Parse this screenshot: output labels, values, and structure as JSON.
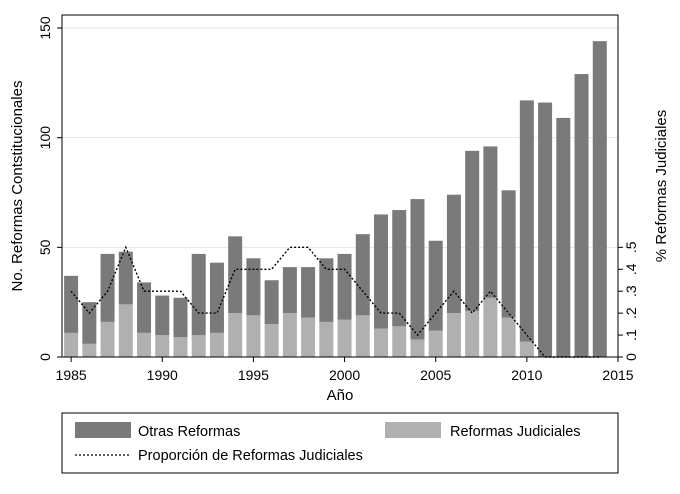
{
  "chart_data": {
    "type": "bar",
    "stacked": true,
    "x": [
      1985,
      1986,
      1987,
      1988,
      1989,
      1990,
      1991,
      1992,
      1993,
      1994,
      1995,
      1996,
      1997,
      1998,
      1999,
      2000,
      2001,
      2002,
      2003,
      2004,
      2005,
      2006,
      2007,
      2008,
      2009,
      2010,
      2011,
      2012,
      2013,
      2014
    ],
    "series": [
      {
        "name": "Otras Reformas",
        "color": "#7a7a7a",
        "axis": "left",
        "values": [
          26,
          19,
          31,
          24,
          23,
          18,
          18,
          37,
          32,
          35,
          26,
          20,
          21,
          23,
          29,
          30,
          37,
          52,
          53,
          64,
          41,
          54,
          73,
          69,
          58,
          110,
          116,
          109,
          129,
          144
        ]
      },
      {
        "name": "Reformas Judiciales",
        "color": "#b0b0b0",
        "axis": "left",
        "values": [
          11,
          6,
          16,
          24,
          11,
          10,
          9,
          10,
          11,
          20,
          19,
          15,
          20,
          18,
          16,
          17,
          19,
          13,
          14,
          8,
          12,
          20,
          21,
          27,
          18,
          7,
          0,
          0,
          0,
          0
        ]
      },
      {
        "name": "Proporción de Reformas Judiciales",
        "type": "line",
        "style": "dotted",
        "color": "#000000",
        "axis": "right",
        "values": [
          0.3,
          0.2,
          0.3,
          0.5,
          0.3,
          0.3,
          0.3,
          0.2,
          0.2,
          0.4,
          0.4,
          0.4,
          0.5,
          0.5,
          0.4,
          0.4,
          0.3,
          0.2,
          0.2,
          0.1,
          0.2,
          0.3,
          0.2,
          0.3,
          0.2,
          0.1,
          0.0,
          0.0,
          0.0,
          0.0
        ]
      }
    ],
    "xlabel": "Año",
    "ylabel": "No. Reformas Contstitucionales",
    "ylabel_right": "% Reformas Judiciales",
    "xlim": [
      1984.5,
      2015
    ],
    "ylim": [
      0,
      150
    ],
    "ylim_right": [
      0,
      1.5
    ],
    "xticks": [
      "1985",
      "1990",
      "1995",
      "2000",
      "2005",
      "2010",
      "2015"
    ],
    "yticks": [
      "0",
      "50",
      "100",
      "150"
    ],
    "yticks_right": [
      "0",
      ".1",
      ".2",
      ".3",
      ".4",
      ".5"
    ],
    "grid": "horizontal",
    "legend_position": "bottom"
  }
}
